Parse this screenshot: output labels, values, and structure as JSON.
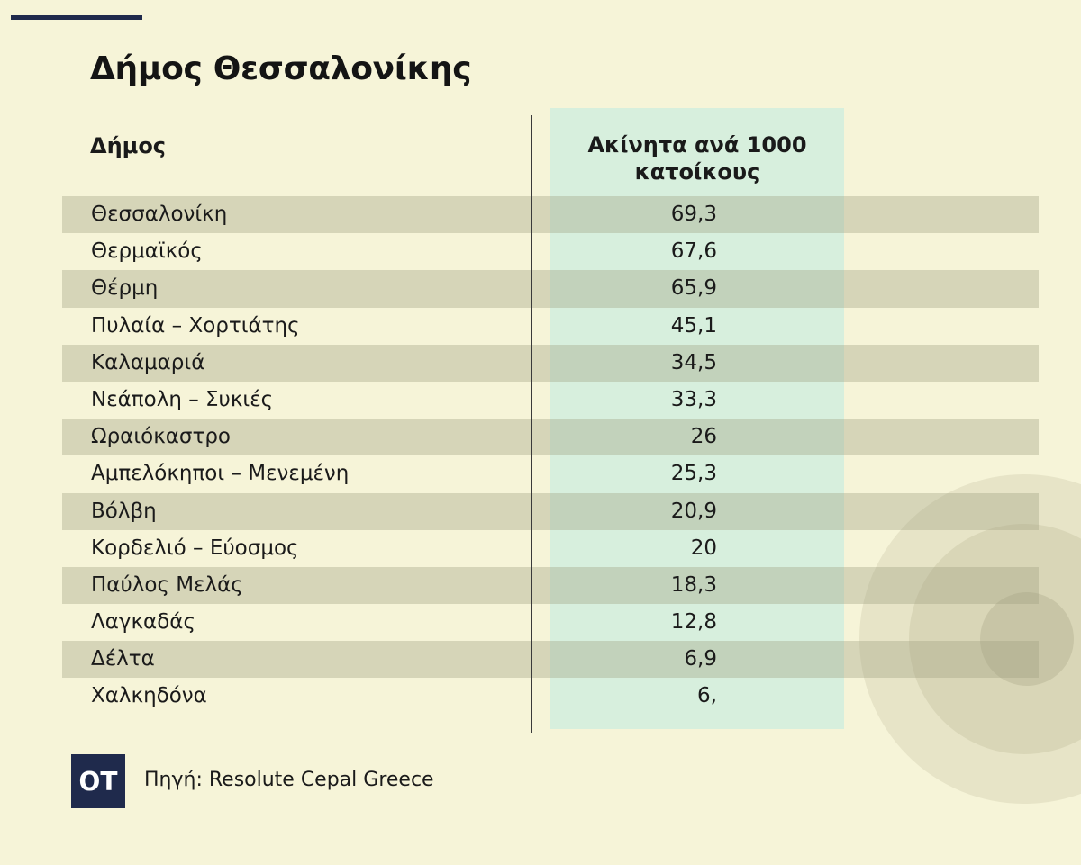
{
  "title": "Δήμος Θεσσαλονίκης",
  "logo_text": "ΟΤ",
  "source": "Πηγή: Resolute Cepal Greece",
  "colors": {
    "background": "#f6f4d8",
    "highlight_column": "#cfeede",
    "row_shade": "#d8d7bd",
    "brand_navy": "#1f2a4c"
  },
  "chart_data": {
    "type": "table",
    "columns": [
      "Δήμος",
      "Ακίνητα ανά 1000 κατοίκους"
    ],
    "header_lines": [
      "Ακίνητα ανά 1000",
      "κατοίκους"
    ],
    "rows": [
      {
        "name": "Θεσσαλονίκη",
        "value": "69,3"
      },
      {
        "name": "Θερμαϊκός",
        "value": "67,6"
      },
      {
        "name": "Θέρμη",
        "value": "65,9"
      },
      {
        "name": "Πυλαία – Χορτιάτης",
        "value": "45,1"
      },
      {
        "name": "Καλαμαριά",
        "value": "34,5"
      },
      {
        "name": "Νεάπολη – Συκιές",
        "value": "33,3"
      },
      {
        "name": "Ωραιόκαστρο",
        "value": "26"
      },
      {
        "name": "Αμπελόκηποι – Μενεμένη",
        "value": "25,3"
      },
      {
        "name": "Βόλβη",
        "value": "20,9"
      },
      {
        "name": "Κορδελιό – Εύοσμος",
        "value": "20"
      },
      {
        "name": "Παύλος Μελάς",
        "value": "18,3"
      },
      {
        "name": "Λαγκαδάς",
        "value": "12,8"
      },
      {
        "name": "Δέλτα",
        "value": "6,9"
      },
      {
        "name": "Χαλκηδόνα",
        "value": "6,"
      }
    ]
  }
}
